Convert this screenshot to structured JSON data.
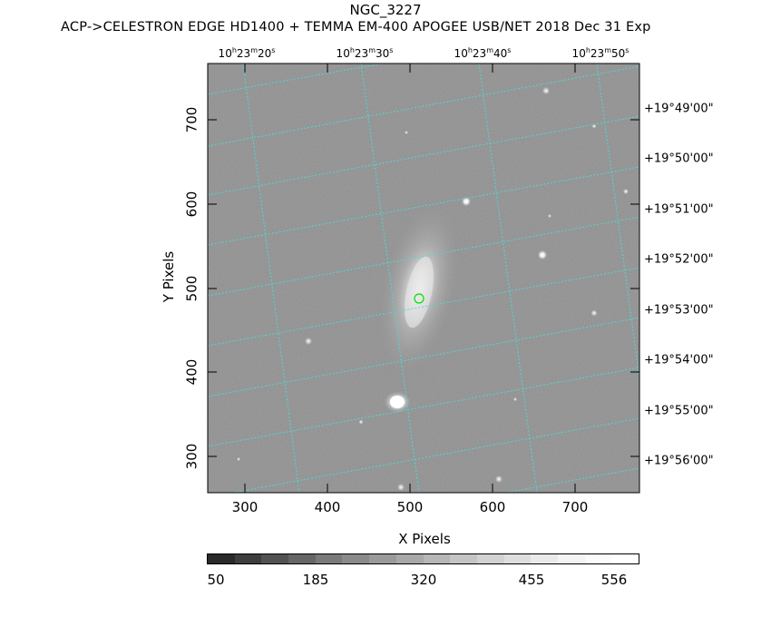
{
  "header": {
    "title": "NGC_3227",
    "subtitle": "ACP->CELESTRON EDGE HD1400 + TEMMA EM-400 APOGEE USB/NET   2018 Dec 31    Exp"
  },
  "image": {
    "description_free": true,
    "x_range": [
      258,
      768
    ],
    "y_range": [
      256,
      770
    ]
  },
  "axes": {
    "xlabel": "X Pixels",
    "ylabel": "Y Pixels",
    "x_ticks": [
      "300",
      "400",
      "500",
      "600",
      "700"
    ],
    "y_ticks": [
      "300",
      "400",
      "500",
      "600",
      "700"
    ]
  },
  "ra_labels": [
    {
      "h": "10",
      "m": "23",
      "s": "20"
    },
    {
      "h": "10",
      "m": "23",
      "s": "30"
    },
    {
      "h": "10",
      "m": "23",
      "s": "40"
    },
    {
      "h": "10",
      "m": "23",
      "s": "50"
    }
  ],
  "dec_labels": [
    "+19°49'00\"",
    "+19°50'00\"",
    "+19°51'00\"",
    "+19°52'00\"",
    "+19°53'00\"",
    "+19°54'00\"",
    "+19°55'00\"",
    "+19°56'00\""
  ],
  "colorbar": {
    "labels": [
      "50",
      "185",
      "320",
      "455",
      "556"
    ],
    "colors": [
      "#2a2a2a",
      "#3e3e3e",
      "#525252",
      "#666666",
      "#7a7a7a",
      "#8a8a8a",
      "#9a9a9a",
      "#a8a8a8",
      "#b6b6b6",
      "#c4c4c4",
      "#d2d2d2",
      "#dedede",
      "#eaeaea",
      "#f4f4f4",
      "#fbfbfb",
      "#ffffff"
    ]
  },
  "colors": {
    "grid": "#4fd7d7",
    "marker": "#00e000",
    "background_sky": "#8c8c8c"
  }
}
